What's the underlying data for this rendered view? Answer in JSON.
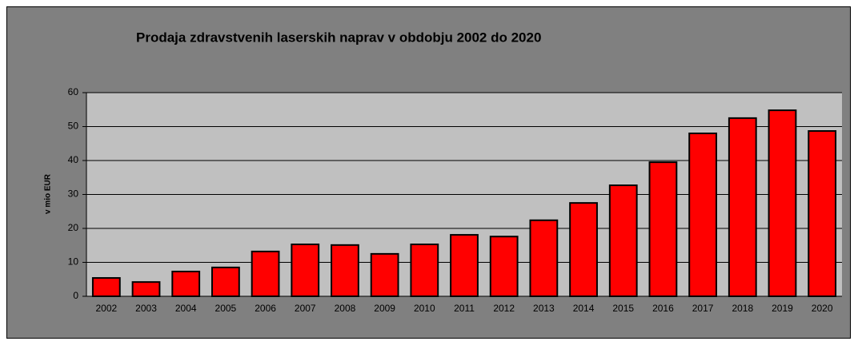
{
  "chart_data": {
    "type": "bar",
    "title": "Prodaja zdravstvenih laserskih naprav v obdobju 2002 do 2020",
    "y_label": "v mio EUR",
    "categories": [
      "2002",
      "2003",
      "2004",
      "2005",
      "2006",
      "2007",
      "2008",
      "2009",
      "2010",
      "2011",
      "2012",
      "2013",
      "2014",
      "2015",
      "2016",
      "2017",
      "2018",
      "2019",
      "2020"
    ],
    "values": [
      5.4,
      4.2,
      7.3,
      8.5,
      13.2,
      15.3,
      15.1,
      12.5,
      15.3,
      18.1,
      17.6,
      22.4,
      27.5,
      32.7,
      39.5,
      48,
      52.5,
      54.8,
      48.7
    ],
    "color": "#ff0000",
    "ylim": [
      0,
      60
    ],
    "yticks": [
      0,
      10,
      20,
      30,
      40,
      50,
      60
    ],
    "grid": true
  }
}
